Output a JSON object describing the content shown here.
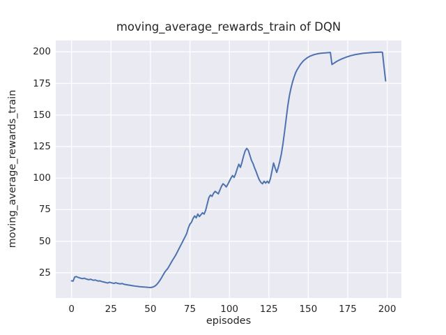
{
  "figure": {
    "title": "moving_average_rewards_train of DQN",
    "xlabel": "episodes",
    "ylabel": "moving_average_rewards_train"
  },
  "colors": {
    "figure_background": "#ffffff",
    "plot_background": "#eaeaf2",
    "grid": "#ffffff",
    "line": "#4c72b0",
    "text": "#262626"
  },
  "chart_data": {
    "type": "line",
    "title": "moving_average_rewards_train of DQN",
    "xlabel": "episodes",
    "ylabel": "moving_average_rewards_train",
    "xlim": [
      -10,
      209
    ],
    "ylim": [
      5,
      209
    ],
    "x_ticks": [
      0,
      25,
      50,
      75,
      100,
      125,
      150,
      175,
      200
    ],
    "y_ticks": [
      25,
      50,
      75,
      100,
      125,
      150,
      175,
      200
    ],
    "grid": true,
    "legend_position": "none",
    "series": [
      {
        "name": "moving_average_rewards_train",
        "color": "#4c72b0",
        "points": [
          [
            0,
            18.6
          ],
          [
            1,
            18.4
          ],
          [
            2,
            21.6
          ],
          [
            3,
            22.0
          ],
          [
            4,
            21.4
          ],
          [
            5,
            21.0
          ],
          [
            6,
            20.6
          ],
          [
            7,
            20.3
          ],
          [
            8,
            20.7
          ],
          [
            9,
            20.2
          ],
          [
            10,
            19.8
          ],
          [
            11,
            19.5
          ],
          [
            12,
            19.9
          ],
          [
            13,
            19.4
          ],
          [
            14,
            19.0
          ],
          [
            15,
            19.3
          ],
          [
            16,
            18.8
          ],
          [
            17,
            18.4
          ],
          [
            18,
            18.6
          ],
          [
            19,
            18.1
          ],
          [
            20,
            17.8
          ],
          [
            21,
            17.5
          ],
          [
            22,
            17.2
          ],
          [
            23,
            16.9
          ],
          [
            24,
            17.5
          ],
          [
            25,
            17.2
          ],
          [
            26,
            16.8
          ],
          [
            27,
            16.6
          ],
          [
            28,
            17.1
          ],
          [
            29,
            16.7
          ],
          [
            30,
            16.4
          ],
          [
            31,
            16.2
          ],
          [
            32,
            16.5
          ],
          [
            33,
            16.0
          ],
          [
            34,
            15.7
          ],
          [
            35,
            15.5
          ],
          [
            36,
            15.3
          ],
          [
            37,
            15.1
          ],
          [
            38,
            14.9
          ],
          [
            39,
            14.7
          ],
          [
            40,
            14.5
          ],
          [
            41,
            14.3
          ],
          [
            42,
            14.2
          ],
          [
            43,
            14.0
          ],
          [
            44,
            13.9
          ],
          [
            45,
            13.8
          ],
          [
            46,
            13.7
          ],
          [
            47,
            13.6
          ],
          [
            48,
            13.5
          ],
          [
            49,
            13.4
          ],
          [
            50,
            13.3
          ],
          [
            51,
            13.5
          ],
          [
            52,
            13.9
          ],
          [
            53,
            14.6
          ],
          [
            54,
            15.7
          ],
          [
            55,
            17.2
          ],
          [
            56,
            19.0
          ],
          [
            57,
            21.0
          ],
          [
            58,
            23.2
          ],
          [
            59,
            25.3
          ],
          [
            60,
            27.0
          ],
          [
            61,
            28.4
          ],
          [
            62,
            30.6
          ],
          [
            63,
            32.8
          ],
          [
            64,
            35.0
          ],
          [
            65,
            36.9
          ],
          [
            66,
            39.0
          ],
          [
            67,
            41.4
          ],
          [
            68,
            43.9
          ],
          [
            69,
            46.3
          ],
          [
            70,
            48.7
          ],
          [
            71,
            51.2
          ],
          [
            72,
            53.6
          ],
          [
            73,
            56.2
          ],
          [
            74,
            60.5
          ],
          [
            75,
            63.5
          ],
          [
            76,
            65.0
          ],
          [
            77,
            68.0
          ],
          [
            78,
            70.0
          ],
          [
            79,
            68.5
          ],
          [
            80,
            71.5
          ],
          [
            81,
            69.5
          ],
          [
            82,
            71.0
          ],
          [
            83,
            72.5
          ],
          [
            84,
            71.5
          ],
          [
            85,
            74.5
          ],
          [
            86,
            79.5
          ],
          [
            87,
            84.5
          ],
          [
            88,
            86.5
          ],
          [
            89,
            85.5
          ],
          [
            90,
            88.0
          ],
          [
            91,
            89.5
          ],
          [
            92,
            88.5
          ],
          [
            93,
            87.5
          ],
          [
            94,
            90.5
          ],
          [
            95,
            93.5
          ],
          [
            96,
            95.5
          ],
          [
            97,
            94.5
          ],
          [
            98,
            93.0
          ],
          [
            99,
            95.0
          ],
          [
            100,
            97.5
          ],
          [
            101,
            100.0
          ],
          [
            102,
            102.0
          ],
          [
            103,
            100.5
          ],
          [
            104,
            103.5
          ],
          [
            105,
            107.5
          ],
          [
            106,
            111.0
          ],
          [
            107,
            108.5
          ],
          [
            108,
            112.5
          ],
          [
            109,
            117.5
          ],
          [
            110,
            121.5
          ],
          [
            111,
            123.5
          ],
          [
            112,
            122.0
          ],
          [
            113,
            118.0
          ],
          [
            114,
            114.0
          ],
          [
            115,
            111.5
          ],
          [
            116,
            108.0
          ],
          [
            117,
            105.0
          ],
          [
            118,
            101.5
          ],
          [
            119,
            98.5
          ],
          [
            120,
            96.5
          ],
          [
            121,
            95.5
          ],
          [
            122,
            97.5
          ],
          [
            123,
            96.0
          ],
          [
            124,
            97.5
          ],
          [
            125,
            96.0
          ],
          [
            126,
            99.5
          ],
          [
            127,
            105.5
          ],
          [
            128,
            112.0
          ],
          [
            129,
            108.0
          ],
          [
            130,
            104.5
          ],
          [
            131,
            108.5
          ],
          [
            132,
            113.5
          ],
          [
            133,
            119.5
          ],
          [
            134,
            127.5
          ],
          [
            135,
            137.0
          ],
          [
            136,
            147.0
          ],
          [
            137,
            157.0
          ],
          [
            138,
            165.0
          ],
          [
            139,
            171.0
          ],
          [
            140,
            176.0
          ],
          [
            141,
            180.0
          ],
          [
            142,
            183.5
          ],
          [
            143,
            186.0
          ],
          [
            144,
            188.0
          ],
          [
            145,
            190.0
          ],
          [
            146,
            191.5
          ],
          [
            147,
            193.0
          ],
          [
            148,
            194.0
          ],
          [
            149,
            195.0
          ],
          [
            150,
            195.8
          ],
          [
            151,
            196.5
          ],
          [
            152,
            197.0
          ],
          [
            153,
            197.5
          ],
          [
            154,
            197.9
          ],
          [
            155,
            198.2
          ],
          [
            156,
            198.5
          ],
          [
            157,
            198.7
          ],
          [
            158,
            198.9
          ],
          [
            159,
            199.0
          ],
          [
            160,
            199.1
          ],
          [
            161,
            199.2
          ],
          [
            162,
            199.3
          ],
          [
            163,
            199.4
          ],
          [
            164,
            199.5
          ],
          [
            165,
            190.0
          ],
          [
            166,
            190.8
          ],
          [
            167,
            191.6
          ],
          [
            168,
            192.4
          ],
          [
            169,
            193.1
          ],
          [
            170,
            193.7
          ],
          [
            171,
            194.3
          ],
          [
            172,
            194.8
          ],
          [
            173,
            195.3
          ],
          [
            174,
            195.8
          ],
          [
            175,
            196.2
          ],
          [
            176,
            196.6
          ],
          [
            177,
            197.0
          ],
          [
            178,
            197.3
          ],
          [
            179,
            197.6
          ],
          [
            180,
            197.9
          ],
          [
            181,
            198.1
          ],
          [
            182,
            198.3
          ],
          [
            183,
            198.5
          ],
          [
            184,
            198.7
          ],
          [
            185,
            198.9
          ],
          [
            186,
            199.0
          ],
          [
            187,
            199.1
          ],
          [
            188,
            199.2
          ],
          [
            189,
            199.3
          ],
          [
            190,
            199.4
          ],
          [
            191,
            199.5
          ],
          [
            192,
            199.5
          ],
          [
            193,
            199.6
          ],
          [
            194,
            199.7
          ],
          [
            195,
            199.7
          ],
          [
            196,
            199.8
          ],
          [
            197,
            199.6
          ],
          [
            198,
            188.0
          ],
          [
            199,
            177.0
          ]
        ]
      }
    ]
  }
}
